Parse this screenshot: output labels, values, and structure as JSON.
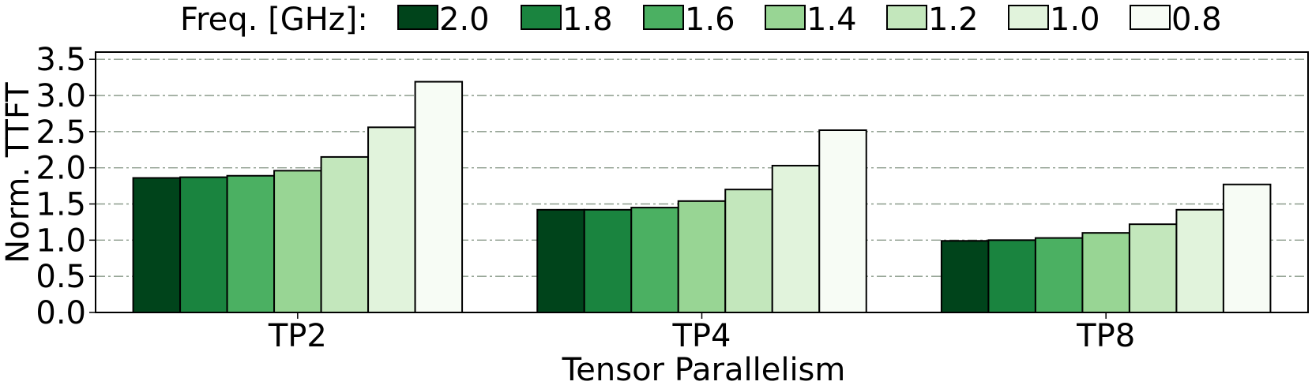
{
  "chart_data": {
    "type": "bar",
    "xlabel": "Tensor Parallelism",
    "ylabel": "Norm. TTFT",
    "ylim": [
      0,
      3.6
    ],
    "yticks": [
      "0.0",
      "0.5",
      "1.0",
      "1.5",
      "2.0",
      "2.5",
      "3.0",
      "3.5"
    ],
    "grid": true,
    "legend_title": "Freq. [GHz]:",
    "legend_position": "top",
    "categories": [
      "TP2",
      "TP4",
      "TP8"
    ],
    "series": [
      {
        "name": "2.0",
        "color": "#00441b",
        "values": [
          1.86,
          1.42,
          0.99
        ]
      },
      {
        "name": "1.8",
        "color": "#1a843f",
        "values": [
          1.87,
          1.42,
          1.0
        ]
      },
      {
        "name": "1.6",
        "color": "#4bb062",
        "values": [
          1.89,
          1.45,
          1.03
        ]
      },
      {
        "name": "1.4",
        "color": "#98d594",
        "values": [
          1.96,
          1.54,
          1.1
        ]
      },
      {
        "name": "1.2",
        "color": "#c3e7bc",
        "values": [
          2.15,
          1.7,
          1.22
        ]
      },
      {
        "name": "1.0",
        "color": "#e1f3dc",
        "values": [
          2.56,
          2.03,
          1.42
        ]
      },
      {
        "name": "0.8",
        "color": "#f7fcf5",
        "values": [
          3.19,
          2.52,
          1.77
        ]
      }
    ]
  }
}
